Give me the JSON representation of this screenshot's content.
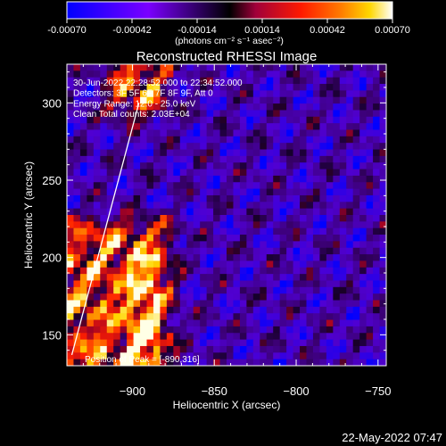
{
  "colorbar": {
    "tick_labels": [
      "-0.00070",
      "-0.00042",
      "-0.00014",
      "0.00014",
      "0.00042",
      "0.00070"
    ],
    "tick_values": [
      -0.0007,
      -0.00042,
      -0.00014,
      0.00014,
      0.00042,
      0.0007
    ],
    "range": [
      -0.0007,
      0.0007
    ],
    "units_label": "(photons cm⁻² s⁻¹ asec⁻²)",
    "colors": [
      "#0000ff",
      "#7a00ff",
      "#000000",
      "#a0003a",
      "#ff1a00",
      "#ff7a00",
      "#ffd700",
      "#ffffff"
    ]
  },
  "chart_data": {
    "type": "heatmap",
    "title": "Reconstructed RHESSI Image",
    "xlabel": "Heliocentric X (arcsec)",
    "ylabel": "Heliocentric Y (arcsec)",
    "xlim": [
      -940,
      -745
    ],
    "ylim": [
      130,
      325
    ],
    "x_ticks": [
      -900,
      -850,
      -800,
      -750
    ],
    "y_ticks": [
      150,
      200,
      250,
      300
    ],
    "x_tick_labels": [
      "−900",
      "−850",
      "−800",
      "−750"
    ],
    "y_tick_labels": [
      "150",
      "200",
      "250",
      "300"
    ],
    "annotations": [
      "30-Jun-2022 22:28:52.000 to 22:34:52.000",
      "Detectors: 3F 5F 6F 7F 8F 9F, Att 0",
      "Energy Range: 12.0 - 25.0 keV",
      "Clean     Total counts: 2.03E+04"
    ],
    "peak_label": "Position of Peak = [-890,316]",
    "peak_position": [
      -890,
      316
    ],
    "limb_line": [
      [
        -937,
        137
      ],
      [
        -896,
        300
      ]
    ],
    "bright_regions": [
      {
        "x": [
          -940,
          -885
        ],
        "y": [
          132,
          215
        ]
      },
      {
        "x": [
          -905,
          -888
        ],
        "y": [
          300,
          325
        ]
      }
    ]
  },
  "footer": {
    "timestamp": "22-May-2022 07:47"
  }
}
